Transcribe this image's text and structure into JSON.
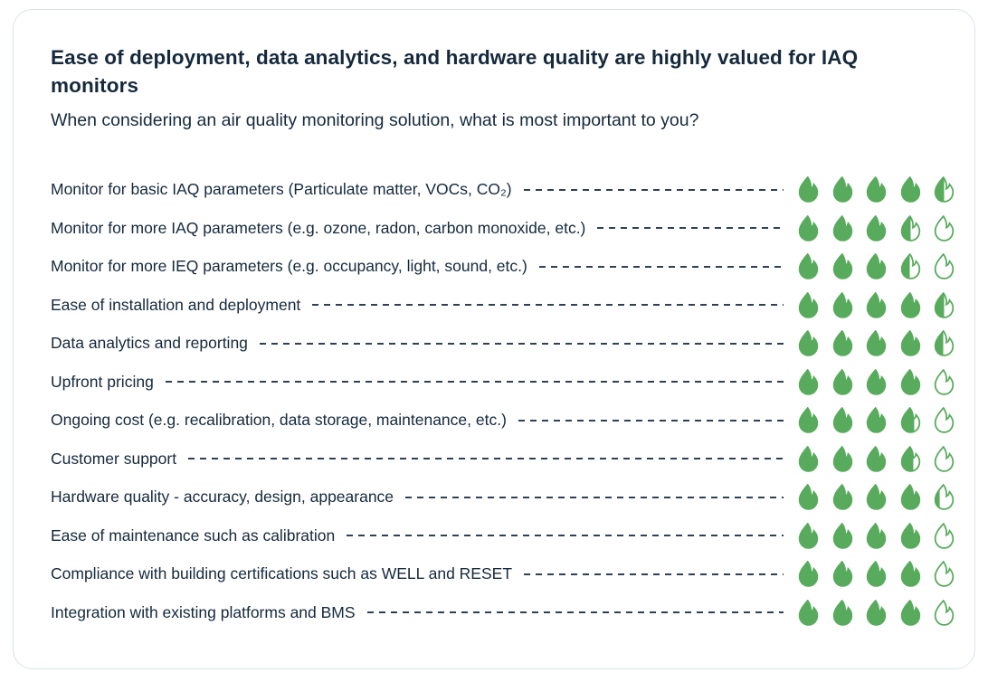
{
  "colors": {
    "flame_green": "#58ab5c",
    "text_navy": "#15293d",
    "leader_dash": "#2e4156",
    "card_border": "#dae3ea"
  },
  "chart_data": {
    "type": "bar",
    "variant": "pictogram-rating",
    "marker": "flame-icon",
    "title": "Ease of deployment, data analytics, and hardware quality are highly valued for IAQ monitors",
    "subtitle": "When considering an air quality monitoring solution, what is most important to you?",
    "max_score": 5,
    "icons_per_row": 5,
    "legend_position": "none",
    "grid": false,
    "categories": [
      "Monitor for basic IAQ parameters (Particulate matter, VOCs, CO₂)",
      "Monitor for more IAQ parameters (e.g. ozone, radon, carbon monoxide, etc.)",
      "Monitor for more IEQ parameters (e.g. occupancy, light, sound, etc.)",
      "Ease of installation and deployment",
      "Data analytics and reporting",
      "Upfront pricing",
      "Ongoing cost (e.g. recalibration, data storage, maintenance, etc.)",
      "Customer support",
      "Hardware quality - accuracy, design, appearance",
      "Ease of maintenance such as calibration",
      "Compliance with building certifications such as WELL and RESET",
      "Integration with existing platforms and BMS"
    ],
    "values": [
      4.5,
      3.5,
      3.45,
      4.5,
      4.45,
      4.0,
      3.7,
      3.65,
      4.25,
      4.0,
      4.0,
      4.0
    ]
  }
}
